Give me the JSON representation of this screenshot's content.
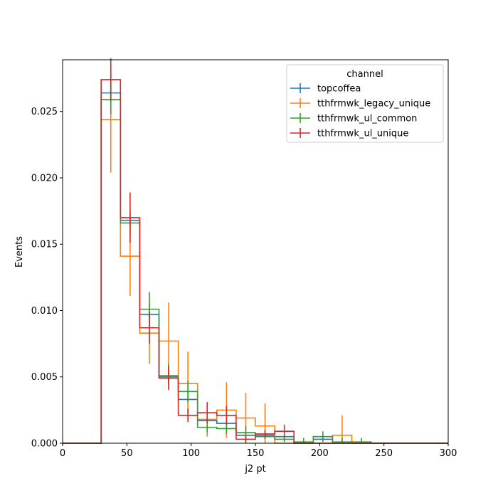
{
  "chart_data": {
    "type": "histogram",
    "title": "",
    "xlabel": "j2 pt",
    "ylabel": "Events",
    "xlim": [
      0,
      300
    ],
    "ylim": [
      0,
      0.0289
    ],
    "xticks": [
      0,
      50,
      100,
      150,
      200,
      250,
      300
    ],
    "yticks": [
      0.0,
      0.005,
      0.01,
      0.015,
      0.02,
      0.025
    ],
    "ytick_labels": [
      "0.000",
      "0.005",
      "0.010",
      "0.015",
      "0.020",
      "0.025"
    ],
    "grid": false,
    "legend": {
      "title": "channel",
      "placement": "top-right"
    },
    "bin_edges": [
      0,
      15,
      30,
      45,
      60,
      75,
      90,
      105,
      120,
      135,
      150,
      165,
      180,
      195,
      210,
      225,
      240,
      255,
      270,
      285,
      300
    ],
    "series": [
      {
        "name": "topcoffea",
        "color": "#1f77b4",
        "values": [
          0,
          0,
          0.0264,
          0.0168,
          0.0097,
          0.005,
          0.0033,
          0.0017,
          0.0015,
          0.0006,
          0.0006,
          0.0005,
          0,
          0.0003,
          0,
          0,
          0,
          0,
          0,
          0
        ],
        "errors": [
          0,
          0,
          0.0008,
          0.0006,
          0.0005,
          0.0004,
          0.0003,
          0.0002,
          0.0002,
          0.0001,
          0.0001,
          0.0001,
          0,
          0.0001,
          0,
          0,
          0,
          0,
          0,
          0
        ]
      },
      {
        "name": "tthfrmwk_legacy_unique",
        "color": "#ff7f0e",
        "values": [
          0,
          0,
          0.0244,
          0.0141,
          0.0083,
          0.0077,
          0.0045,
          0.0018,
          0.0025,
          0.0019,
          0.0013,
          0,
          0,
          0,
          0.0006,
          0,
          0,
          0,
          0,
          0
        ],
        "errors": [
          0,
          0,
          0.004,
          0.003,
          0.0023,
          0.0029,
          0.0024,
          0.0013,
          0.0021,
          0.0019,
          0.0017,
          0,
          0,
          0,
          0.0015,
          0,
          0,
          0,
          0,
          0
        ]
      },
      {
        "name": "tthfrmwk_ul_common",
        "color": "#2ca02c",
        "values": [
          0,
          0,
          0.0259,
          0.0166,
          0.0101,
          0.0051,
          0.0039,
          0.0012,
          0.0011,
          0.0008,
          0.0005,
          0.0003,
          0.0001,
          0.0005,
          0.0001,
          0.0001,
          0,
          0,
          0,
          0
        ],
        "errors": [
          0,
          0,
          0.0011,
          0.001,
          0.0013,
          0.0009,
          0.0008,
          0.0004,
          0.0004,
          0.0005,
          0.0002,
          0.0002,
          0.0003,
          0.0004,
          0.0003,
          0.0003,
          0,
          0,
          0,
          0
        ]
      },
      {
        "name": "tthfrmwk_ul_unique",
        "color": "#d62728",
        "values": [
          0,
          0,
          0.0274,
          0.017,
          0.0087,
          0.0049,
          0.0021,
          0.0023,
          0.0021,
          0.0003,
          0.0007,
          0.0009,
          0,
          0,
          0,
          0,
          0,
          0,
          0,
          0
        ],
        "errors": [
          0,
          0,
          0.0016,
          0.0019,
          0.0012,
          0.0009,
          0.0005,
          0.0008,
          0.0007,
          0.0003,
          0.0003,
          0.0005,
          0,
          0,
          0,
          0,
          0,
          0,
          0,
          0
        ]
      }
    ]
  }
}
